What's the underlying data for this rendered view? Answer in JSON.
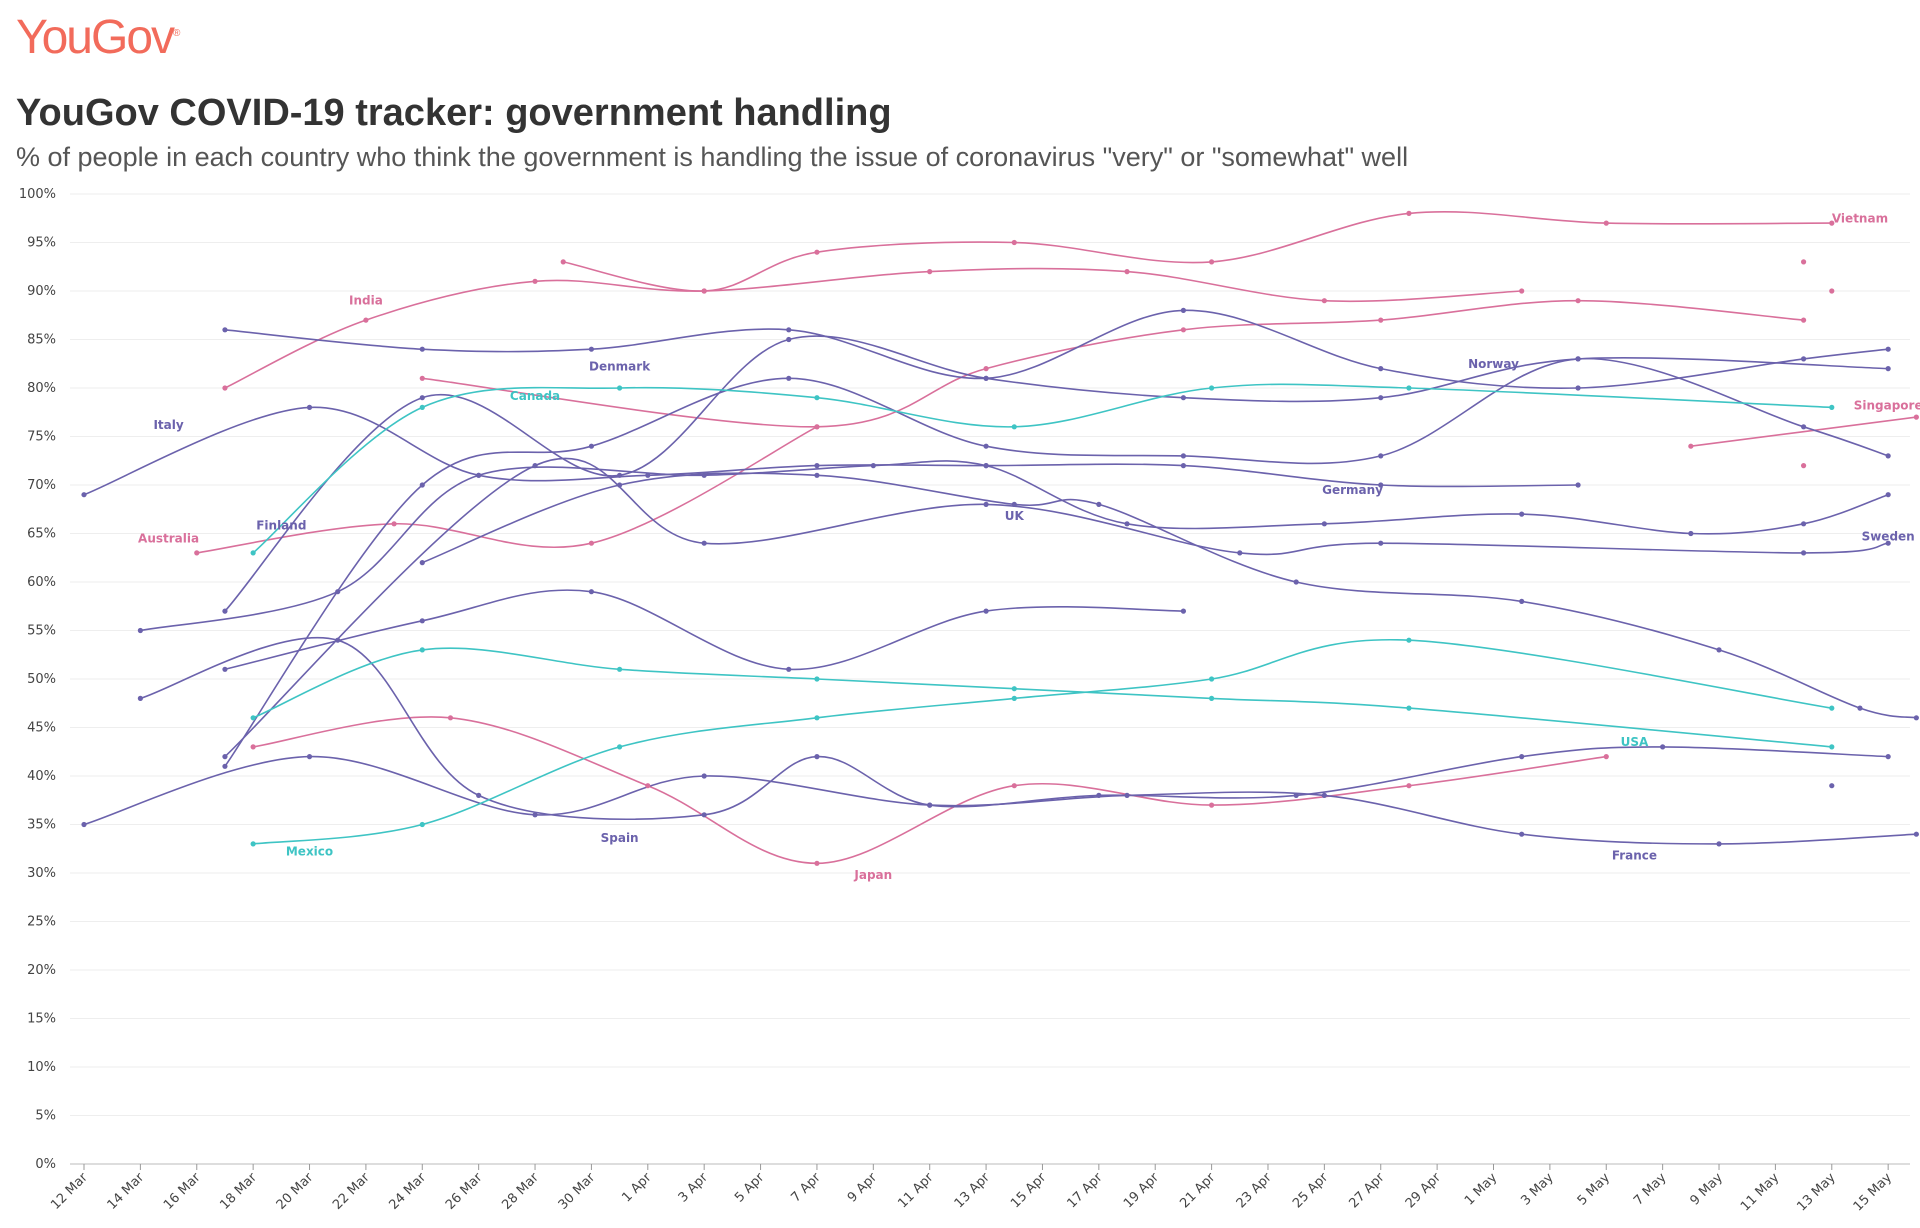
{
  "brand": {
    "logo_text": "YouGov"
  },
  "colors": {
    "purple": "#6b62ac",
    "pink": "#d9709b",
    "teal": "#3ec4c4",
    "logo": "#f26b5b"
  },
  "chart_data": {
    "type": "line",
    "title": "YouGov COVID-19 tracker: government handling",
    "subtitle": "% of people in each country who think the government is handling the issue of coronavirus \"very\" or \"somewhat\" well",
    "x_tick_labels": [
      "12 Mar",
      "14 Mar",
      "16 Mar",
      "18 Mar",
      "20 Mar",
      "22 Mar",
      "24 Mar",
      "26 Mar",
      "28 Mar",
      "30 Mar",
      "1 Apr",
      "3 Apr",
      "5 Apr",
      "7 Apr",
      "9 Apr",
      "11 Apr",
      "13 Apr",
      "15 Apr",
      "17 Apr",
      "19 Apr",
      "21 Apr",
      "23 Apr",
      "25 Apr",
      "27 Apr",
      "29 Apr",
      "1 May",
      "3 May",
      "5 May",
      "7 May",
      "9 May",
      "11 May",
      "13 May",
      "15 May"
    ],
    "x_start": "2020-03-12",
    "y_tick_labels": [
      "0%",
      "5%",
      "10%",
      "15%",
      "20%",
      "25%",
      "30%",
      "35%",
      "40%",
      "45%",
      "50%",
      "55%",
      "60%",
      "65%",
      "70%",
      "75%",
      "80%",
      "85%",
      "90%",
      "95%",
      "100%"
    ],
    "ylim": [
      0,
      100
    ],
    "grid": true,
    "series": [
      {
        "name": "Vietnam",
        "color": "pink",
        "label_at": [
          "2020-05-14",
          97.5
        ],
        "points": [
          [
            "2020-03-29",
            93
          ],
          [
            "2020-04-03",
            90
          ],
          [
            "2020-04-07",
            94
          ],
          [
            "2020-04-14",
            95
          ],
          [
            "2020-04-21",
            93
          ],
          [
            "2020-04-28",
            98
          ],
          [
            "2020-05-05",
            97
          ],
          [
            "2020-05-13",
            97
          ]
        ]
      },
      {
        "name": "India",
        "color": "pink",
        "label_at": [
          "2020-03-22",
          89
        ],
        "points": [
          [
            "2020-03-17",
            80
          ],
          [
            "2020-03-22",
            87
          ],
          [
            "2020-03-28",
            91
          ],
          [
            "2020-04-03",
            90
          ],
          [
            "2020-04-11",
            92
          ],
          [
            "2020-04-18",
            92
          ],
          [
            "2020-04-25",
            89
          ],
          [
            "2020-05-02",
            90
          ]
        ]
      },
      {
        "name": "",
        "color": "pink",
        "points": [
          [
            "2020-03-24",
            81
          ],
          [
            "2020-04-07",
            76
          ],
          [
            "2020-04-13",
            82
          ],
          [
            "2020-04-20",
            86
          ],
          [
            "2020-04-27",
            87
          ],
          [
            "2020-05-04",
            89
          ],
          [
            "2020-05-12",
            87
          ]
        ]
      },
      {
        "name": "Singapore",
        "color": "pink",
        "label_at": [
          "2020-05-15",
          78.2
        ],
        "points": [
          [
            "2020-05-08",
            74
          ],
          [
            "2020-05-16",
            77
          ]
        ]
      },
      {
        "name": "Australia",
        "color": "pink",
        "label_at": [
          "2020-03-15",
          64.5
        ],
        "points": [
          [
            "2020-03-16",
            63
          ],
          [
            "2020-03-23",
            66
          ],
          [
            "2020-03-30",
            64
          ],
          [
            "2020-04-07",
            76
          ]
        ]
      },
      {
        "name": "Japan",
        "color": "pink",
        "label_at": [
          "2020-04-09",
          29.8
        ],
        "points": [
          [
            "2020-03-18",
            43
          ],
          [
            "2020-03-25",
            46
          ],
          [
            "2020-04-01",
            39
          ],
          [
            "2020-04-07",
            31
          ],
          [
            "2020-04-14",
            39
          ],
          [
            "2020-04-21",
            37
          ],
          [
            "2020-04-28",
            39
          ],
          [
            "2020-05-05",
            42
          ]
        ]
      },
      {
        "name": "Denmark",
        "color": "purple",
        "label_at": [
          "2020-03-31",
          82.2
        ],
        "points": [
          [
            "2020-03-17",
            86
          ],
          [
            "2020-03-24",
            84
          ],
          [
            "2020-03-30",
            84
          ],
          [
            "2020-04-06",
            86
          ],
          [
            "2020-04-13",
            81
          ],
          [
            "2020-04-20",
            88
          ],
          [
            "2020-04-27",
            82
          ],
          [
            "2020-05-04",
            80
          ],
          [
            "2020-05-12",
            83
          ],
          [
            "2020-05-15",
            84
          ]
        ]
      },
      {
        "name": "Norway",
        "color": "purple",
        "label_at": [
          "2020-05-01",
          82.5
        ],
        "points": [
          [
            "2020-03-17",
            57
          ],
          [
            "2020-03-24",
            79
          ],
          [
            "2020-03-31",
            71
          ],
          [
            "2020-04-06",
            85
          ],
          [
            "2020-04-13",
            81
          ],
          [
            "2020-04-20",
            79
          ],
          [
            "2020-04-27",
            79
          ],
          [
            "2020-05-04",
            83
          ],
          [
            "2020-05-15",
            82
          ]
        ]
      },
      {
        "name": "Italy",
        "color": "purple",
        "label_at": [
          "2020-03-15",
          76.2
        ],
        "points": [
          [
            "2020-03-12",
            69
          ],
          [
            "2020-03-20",
            78
          ],
          [
            "2020-03-26",
            71
          ],
          [
            "2020-04-01",
            71
          ],
          [
            "2020-04-07",
            72
          ],
          [
            "2020-04-13",
            72
          ],
          [
            "2020-04-20",
            72
          ],
          [
            "2020-04-27",
            70
          ],
          [
            "2020-05-04",
            70
          ]
        ]
      },
      {
        "name": "Germany",
        "color": "purple",
        "label_at": [
          "2020-04-26",
          69.5
        ],
        "points": [
          [
            "2020-03-17",
            41
          ],
          [
            "2020-03-24",
            70
          ],
          [
            "2020-03-30",
            74
          ],
          [
            "2020-04-06",
            81
          ],
          [
            "2020-04-13",
            74
          ],
          [
            "2020-04-20",
            73
          ],
          [
            "2020-04-27",
            73
          ],
          [
            "2020-05-04",
            83
          ],
          [
            "2020-05-12",
            76
          ],
          [
            "2020-05-15",
            73
          ]
        ]
      },
      {
        "name": "Finland",
        "color": "purple",
        "label_at": [
          "2020-03-19",
          65.8
        ],
        "points": [
          [
            "2020-03-17",
            42
          ],
          [
            "2020-03-28",
            72
          ],
          [
            "2020-04-03",
            64
          ],
          [
            "2020-04-13",
            68
          ],
          [
            "2020-04-22",
            63
          ],
          [
            "2020-04-27",
            64
          ],
          [
            "2020-05-12",
            63
          ],
          [
            "2020-05-15",
            64
          ]
        ]
      },
      {
        "name": "Sweden",
        "color": "purple",
        "label_at": [
          "2020-05-15",
          64.7
        ],
        "points": [
          [
            "2020-03-14",
            55
          ],
          [
            "2020-03-21",
            59
          ],
          [
            "2020-03-26",
            71
          ],
          [
            "2020-04-03",
            71
          ],
          [
            "2020-04-09",
            72
          ],
          [
            "2020-04-13",
            72
          ],
          [
            "2020-04-18",
            66
          ],
          [
            "2020-04-25",
            66
          ],
          [
            "2020-05-02",
            67
          ],
          [
            "2020-05-08",
            65
          ],
          [
            "2020-05-12",
            66
          ],
          [
            "2020-05-15",
            69
          ]
        ]
      },
      {
        "name": "UK",
        "color": "purple",
        "label_at": [
          "2020-04-14",
          66.8
        ],
        "points": [
          [
            "2020-03-24",
            62
          ],
          [
            "2020-03-31",
            70
          ],
          [
            "2020-04-07",
            71
          ],
          [
            "2020-04-14",
            68
          ],
          [
            "2020-04-17",
            68
          ],
          [
            "2020-04-24",
            60
          ],
          [
            "2020-05-02",
            58
          ],
          [
            "2020-05-09",
            53
          ],
          [
            "2020-05-14",
            47
          ],
          [
            "2020-05-16",
            46
          ]
        ]
      },
      {
        "name": "",
        "color": "purple",
        "points": [
          [
            "2020-03-17",
            51
          ],
          [
            "2020-03-24",
            56
          ],
          [
            "2020-03-30",
            59
          ],
          [
            "2020-04-06",
            51
          ],
          [
            "2020-04-13",
            57
          ],
          [
            "2020-04-20",
            57
          ]
        ]
      },
      {
        "name": "Spain",
        "color": "purple",
        "label_at": [
          "2020-03-31",
          33.6
        ],
        "points": [
          [
            "2020-03-14",
            48
          ],
          [
            "2020-03-21",
            54
          ],
          [
            "2020-03-26",
            38
          ],
          [
            "2020-04-03",
            36
          ],
          [
            "2020-04-07",
            42
          ],
          [
            "2020-04-11",
            37
          ],
          [
            "2020-04-17",
            38
          ],
          [
            "2020-04-24",
            38
          ],
          [
            "2020-05-02",
            42
          ],
          [
            "2020-05-07",
            43
          ],
          [
            "2020-05-15",
            42
          ]
        ]
      },
      {
        "name": "France",
        "color": "purple",
        "label_at": [
          "2020-05-06",
          31.8
        ],
        "points": [
          [
            "2020-03-12",
            35
          ],
          [
            "2020-03-20",
            42
          ],
          [
            "2020-03-28",
            36
          ],
          [
            "2020-04-03",
            40
          ],
          [
            "2020-04-11",
            37
          ],
          [
            "2020-04-18",
            38
          ],
          [
            "2020-04-25",
            38
          ],
          [
            "2020-05-02",
            34
          ],
          [
            "2020-05-09",
            33
          ],
          [
            "2020-05-16",
            34
          ]
        ]
      },
      {
        "name": "Canada",
        "color": "teal",
        "label_at": [
          "2020-03-28",
          79.2
        ],
        "points": [
          [
            "2020-03-18",
            63
          ],
          [
            "2020-03-24",
            78
          ],
          [
            "2020-03-31",
            80
          ],
          [
            "2020-04-07",
            79
          ],
          [
            "2020-04-14",
            76
          ],
          [
            "2020-04-21",
            80
          ],
          [
            "2020-04-28",
            80
          ],
          [
            "2020-05-13",
            78
          ]
        ]
      },
      {
        "name": "USA",
        "color": "teal",
        "label_at": [
          "2020-05-06",
          43.5
        ],
        "points": [
          [
            "2020-03-18",
            46
          ],
          [
            "2020-03-24",
            53
          ],
          [
            "2020-03-31",
            51
          ],
          [
            "2020-04-07",
            50
          ],
          [
            "2020-04-14",
            49
          ],
          [
            "2020-04-21",
            48
          ],
          [
            "2020-04-28",
            47
          ],
          [
            "2020-05-13",
            43
          ]
        ]
      },
      {
        "name": "Mexico",
        "color": "teal",
        "label_at": [
          "2020-03-20",
          32.2
        ],
        "points": [
          [
            "2020-03-18",
            33
          ],
          [
            "2020-03-24",
            35
          ],
          [
            "2020-03-31",
            43
          ],
          [
            "2020-04-07",
            46
          ],
          [
            "2020-04-14",
            48
          ],
          [
            "2020-04-21",
            50
          ],
          [
            "2020-04-28",
            54
          ],
          [
            "2020-05-13",
            47
          ]
        ]
      }
    ],
    "isolated_points": [
      {
        "color": "pink",
        "date": "2020-05-12",
        "value": 93
      },
      {
        "color": "pink",
        "date": "2020-05-13",
        "value": 90
      },
      {
        "color": "pink",
        "date": "2020-05-12",
        "value": 72
      },
      {
        "color": "purple",
        "date": "2020-05-13",
        "value": 39
      }
    ]
  }
}
